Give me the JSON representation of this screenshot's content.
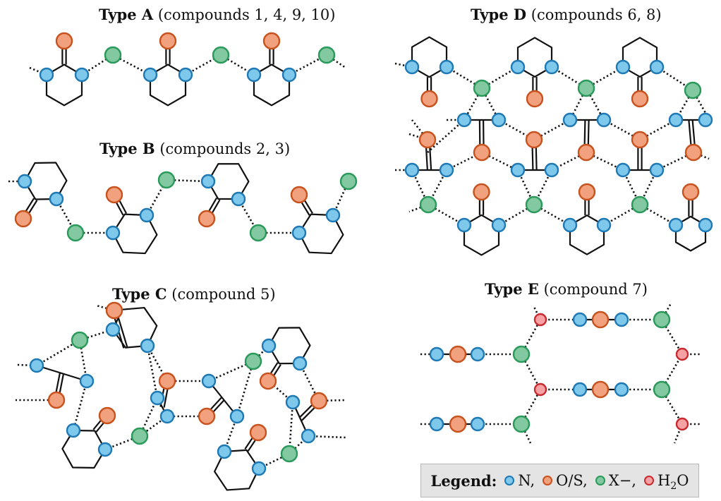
{
  "panels": {
    "a": {
      "type": "Type A",
      "compounds": "(compounds 1, 4, 9, 10)"
    },
    "b": {
      "type": "Type B",
      "compounds": "(compounds 2, 3)"
    },
    "c": {
      "type": "Type C",
      "compounds": "(compound 5)"
    },
    "d": {
      "type": "Type D",
      "compounds": "(compounds 6, 8)"
    },
    "e": {
      "type": "Type E",
      "compounds": "(compound 7)"
    }
  },
  "legend": {
    "title": "Legend:",
    "n": "N,",
    "os": "O/S,",
    "x": "X−,",
    "h2o_main": "H",
    "h2o_sub": "2",
    "h2o_end": "O"
  },
  "colors": {
    "N": {
      "fill": "#7ec8ec",
      "stroke": "#1e79b5"
    },
    "OS": {
      "fill": "#f2a17e",
      "stroke": "#c8521d"
    },
    "X": {
      "fill": "#82c8a0",
      "stroke": "#2a9a5a"
    },
    "H2O": {
      "fill": "#f6a2a4",
      "stroke": "#c82a30"
    }
  }
}
